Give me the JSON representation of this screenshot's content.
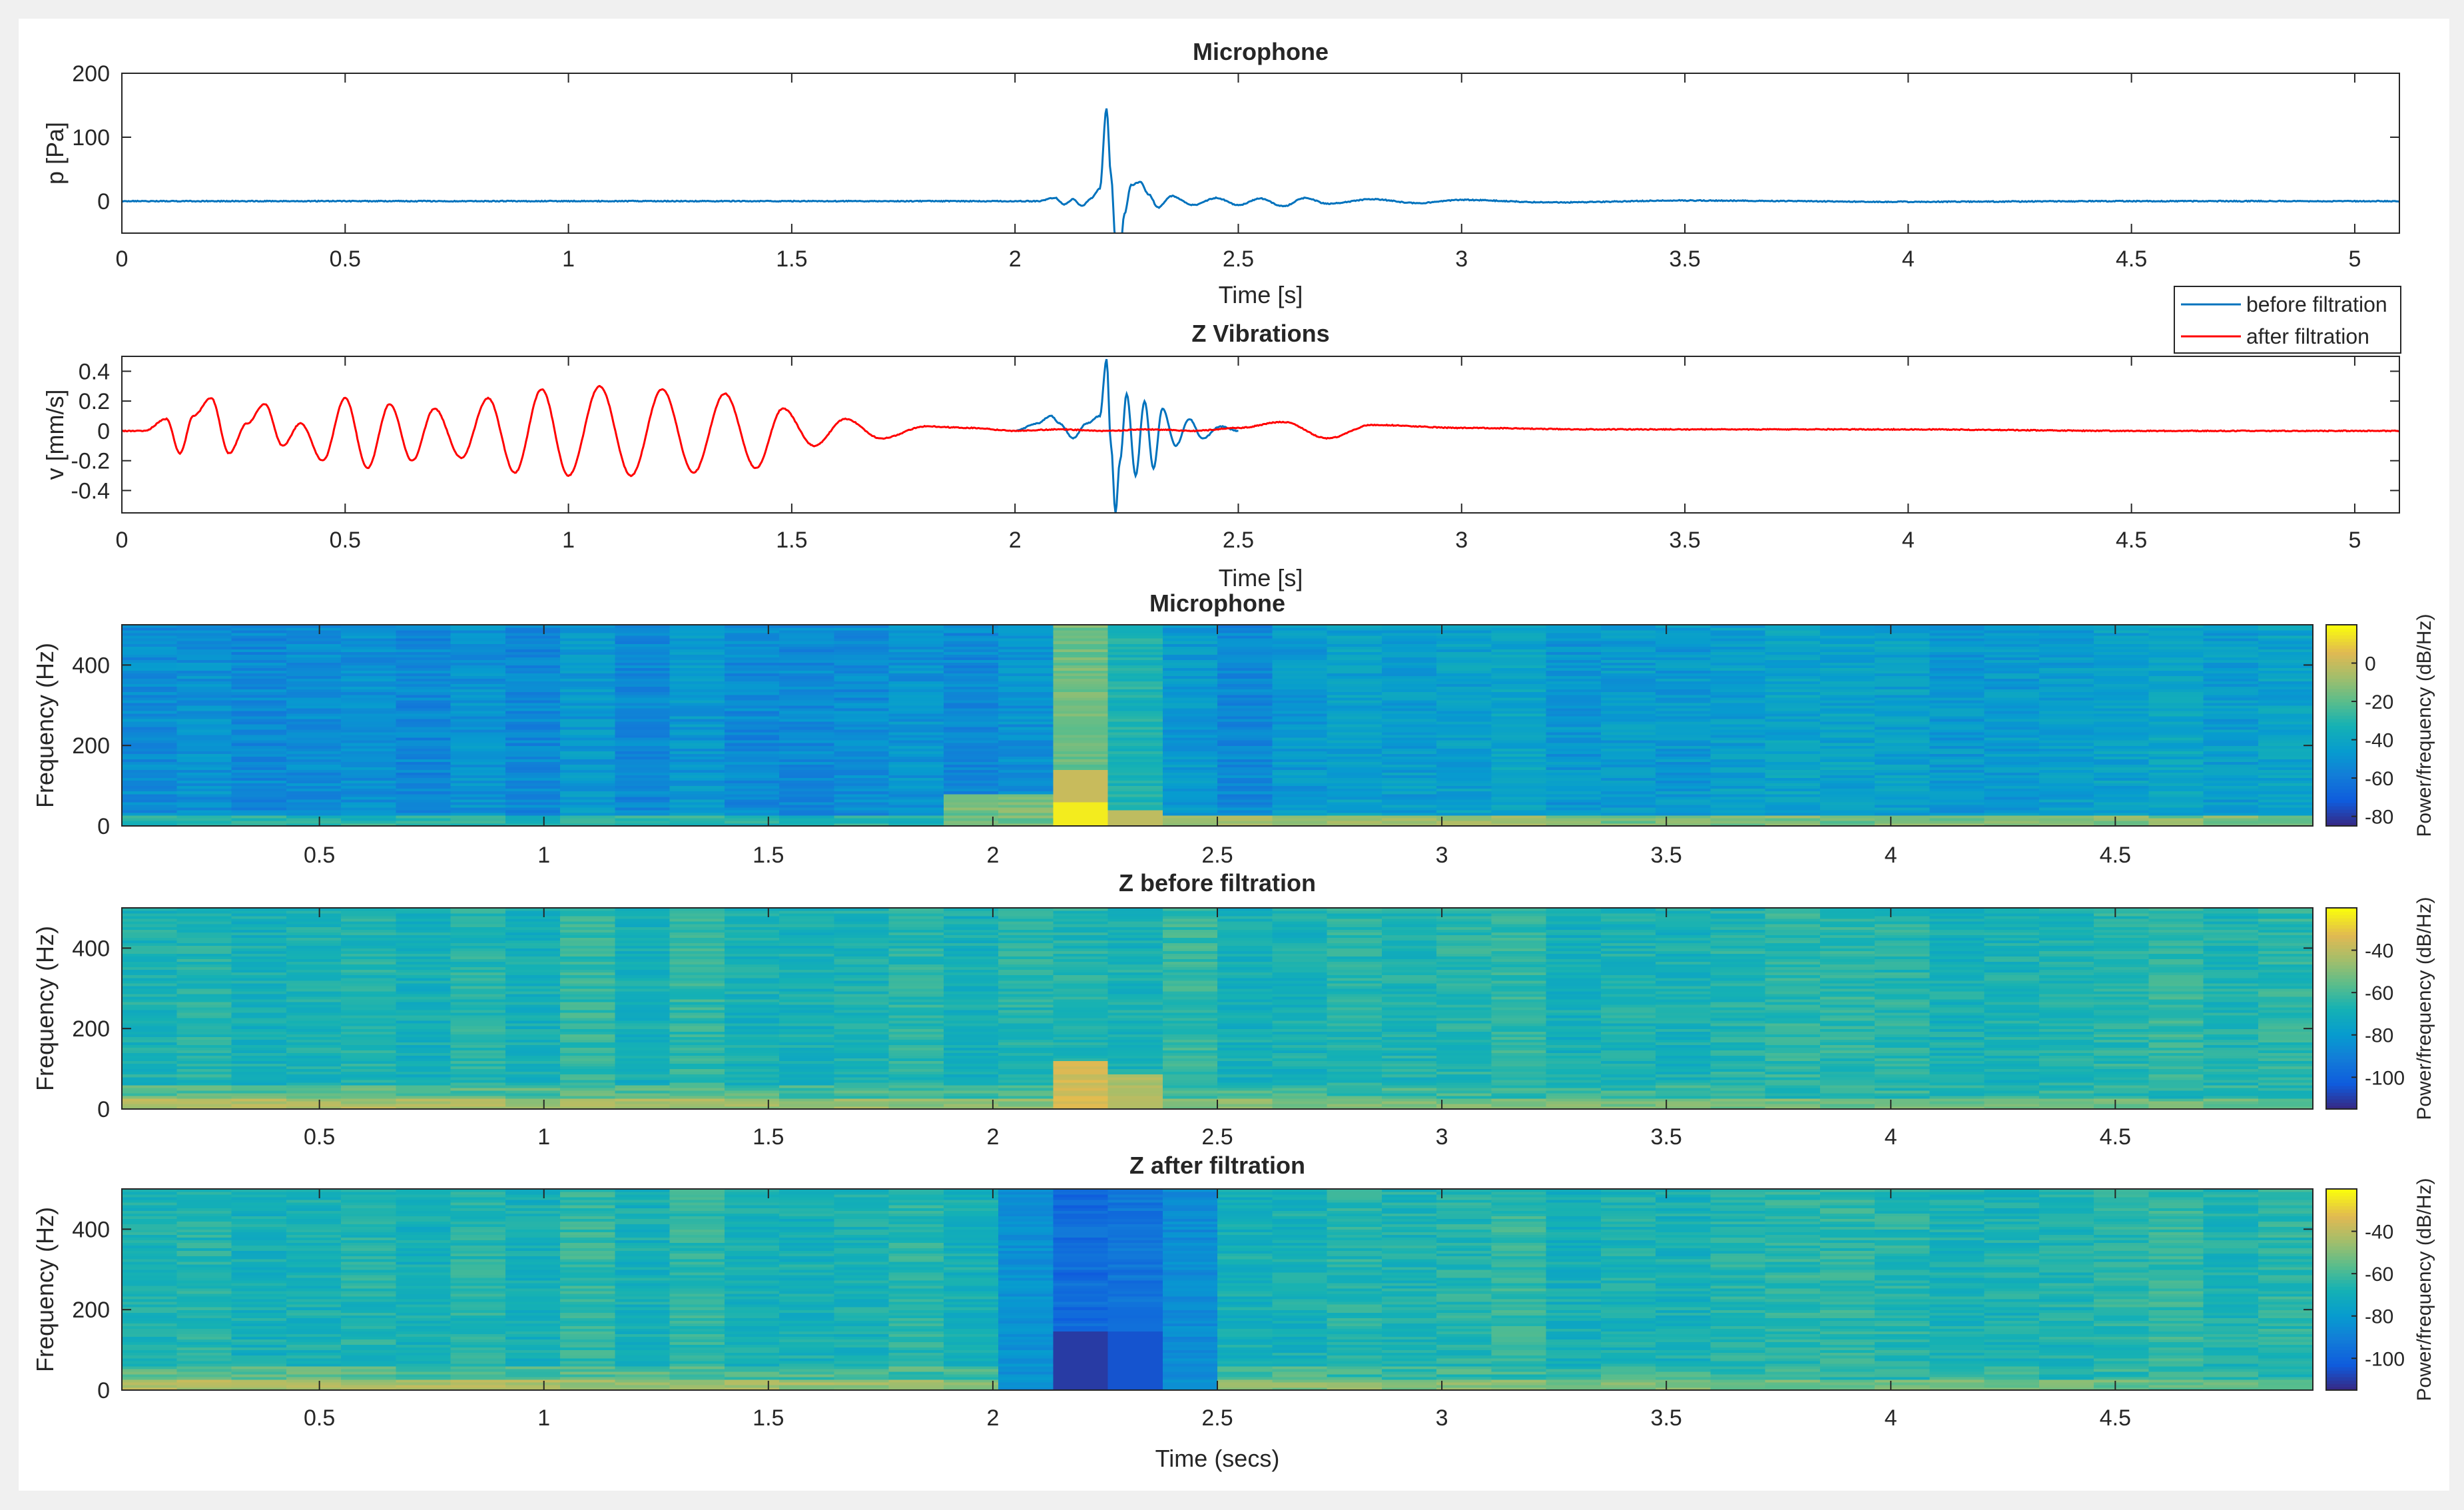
{
  "figure": {
    "background": "#f0f0f0",
    "inner_background": "#ffffff"
  },
  "chart_data": [
    {
      "id": "p1",
      "type": "line",
      "title": "Microphone",
      "xlabel": "Time [s]",
      "ylabel": "p [Pa]",
      "xlim": [
        0,
        5.1
      ],
      "ylim": [
        -50,
        200
      ],
      "xticks": [
        0,
        0.5,
        1,
        1.5,
        2,
        2.5,
        3,
        3.5,
        4,
        4.5,
        5
      ],
      "yticks": [
        0,
        100,
        200
      ],
      "series": [
        {
          "name": "microphone",
          "color": "#0072bd",
          "x": [
            0,
            2.05,
            2.09,
            2.11,
            2.13,
            2.15,
            2.17,
            2.19,
            2.205,
            2.215,
            2.225,
            2.235,
            2.245,
            2.26,
            2.28,
            2.3,
            2.32,
            2.35,
            2.4,
            2.45,
            2.5,
            2.55,
            2.6,
            2.65,
            2.7,
            2.8,
            2.9,
            3.0,
            3.2,
            3.5,
            4.0,
            4.5,
            5.1
          ],
          "y": [
            0,
            0,
            5,
            -5,
            3,
            -8,
            4,
            20,
            145,
            40,
            -60,
            -80,
            -20,
            25,
            30,
            10,
            -10,
            8,
            -6,
            5,
            -6,
            4,
            -8,
            5,
            -4,
            3,
            -3,
            2,
            -2,
            1,
            -1,
            0,
            0
          ]
        }
      ]
    },
    {
      "id": "p2",
      "type": "line",
      "title": "Z Vibrations",
      "xlabel": "Time [s]",
      "ylabel": "v [mm/s]",
      "xlim": [
        0,
        5.1
      ],
      "ylim": [
        -0.55,
        0.5
      ],
      "xticks": [
        0,
        0.5,
        1,
        1.5,
        2,
        2.5,
        3,
        3.5,
        4,
        4.5,
        5
      ],
      "yticks": [
        -0.4,
        -0.2,
        0,
        0.2,
        0.4
      ],
      "ytick_labels": [
        "-0.4",
        "-0.2",
        "0",
        "0.2",
        "0.4"
      ],
      "legend": {
        "location": "top-right",
        "entries": [
          "before filtration",
          "after filtration"
        ]
      },
      "series": [
        {
          "name": "before filtration",
          "color": "#0072bd",
          "x": [
            2.0,
            2.05,
            2.08,
            2.1,
            2.13,
            2.16,
            2.19,
            2.205,
            2.215,
            2.225,
            2.235,
            2.25,
            2.27,
            2.29,
            2.31,
            2.33,
            2.36,
            2.39,
            2.42,
            2.46,
            2.5
          ],
          "y": [
            0.0,
            0.05,
            0.1,
            0.05,
            -0.05,
            0.05,
            0.1,
            0.48,
            -0.1,
            -0.55,
            -0.2,
            0.25,
            -0.3,
            0.2,
            -0.25,
            0.15,
            -0.1,
            0.08,
            -0.05,
            0.03,
            0.0
          ]
        },
        {
          "name": "after filtration",
          "color": "#ff0000",
          "x": [
            0,
            0.05,
            0.1,
            0.13,
            0.16,
            0.2,
            0.24,
            0.28,
            0.32,
            0.36,
            0.4,
            0.45,
            0.5,
            0.55,
            0.6,
            0.65,
            0.7,
            0.76,
            0.82,
            0.88,
            0.94,
            1.0,
            1.07,
            1.14,
            1.21,
            1.28,
            1.35,
            1.42,
            1.48,
            1.55,
            1.62,
            1.7,
            1.8,
            1.9,
            2.0,
            2.1,
            2.2,
            2.3,
            2.4,
            2.5,
            2.6,
            2.7,
            2.8,
            3.0,
            3.3,
            3.6,
            4.0,
            4.5,
            5.1
          ],
          "y": [
            0,
            0,
            0.08,
            -0.15,
            0.1,
            0.22,
            -0.15,
            0.05,
            0.18,
            -0.1,
            0.05,
            -0.2,
            0.22,
            -0.25,
            0.18,
            -0.2,
            0.15,
            -0.18,
            0.22,
            -0.28,
            0.28,
            -0.3,
            0.3,
            -0.3,
            0.28,
            -0.28,
            0.25,
            -0.25,
            0.15,
            -0.1,
            0.08,
            -0.05,
            0.03,
            0.02,
            0.0,
            0.01,
            0.0,
            0.01,
            0.0,
            0.02,
            0.06,
            -0.05,
            0.04,
            0.02,
            0.01,
            0.01,
            0.01,
            0.0,
            0.0
          ]
        }
      ]
    },
    {
      "id": "s1",
      "type": "heatmap",
      "title": "Microphone",
      "xlabel": "",
      "ylabel": "Frequency (Hz)",
      "xlim": [
        0.06,
        4.94
      ],
      "ylim": [
        0,
        500
      ],
      "xticks": [
        0.5,
        1,
        1.5,
        2,
        2.5,
        3,
        3.5,
        4,
        4.5
      ],
      "yticks": [
        0,
        200,
        400
      ],
      "colorbar": {
        "label": "Power/frequency (dB/Hz)",
        "min": -85,
        "max": 20,
        "ticks": [
          0,
          -20,
          -40,
          -60,
          -80
        ]
      }
    },
    {
      "id": "s2",
      "type": "heatmap",
      "title": "Z before filtration",
      "xlabel": "",
      "ylabel": "Frequency (Hz)",
      "xlim": [
        0.06,
        4.94
      ],
      "ylim": [
        0,
        500
      ],
      "xticks": [
        0.5,
        1,
        1.5,
        2,
        2.5,
        3,
        3.5,
        4,
        4.5
      ],
      "yticks": [
        0,
        200,
        400
      ],
      "colorbar": {
        "label": "Power/frequency (dB/Hz)",
        "min": -115,
        "max": -20,
        "ticks": [
          -40,
          -60,
          -80,
          -100
        ]
      }
    },
    {
      "id": "s3",
      "type": "heatmap",
      "title": "Z after filtration",
      "xlabel": "Time (secs)",
      "ylabel": "Frequency (Hz)",
      "xlim": [
        0.06,
        4.94
      ],
      "ylim": [
        0,
        500
      ],
      "xticks": [
        0.5,
        1,
        1.5,
        2,
        2.5,
        3,
        3.5,
        4,
        4.5
      ],
      "yticks": [
        0,
        200,
        400
      ],
      "colorbar": {
        "label": "Power/frequency (dB/Hz)",
        "min": -115,
        "max": -20,
        "ticks": [
          -40,
          -60,
          -80,
          -100
        ]
      }
    }
  ]
}
